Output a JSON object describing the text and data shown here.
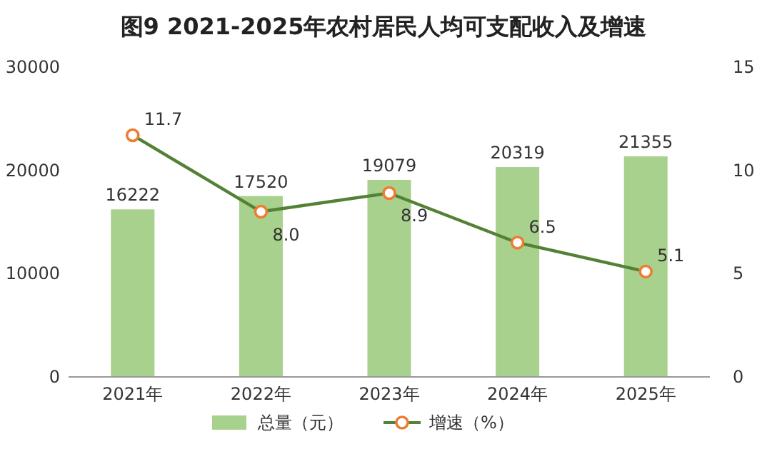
{
  "chart_data": {
    "type": "bar",
    "title": "图9 2021-2025年农村居民人均可支配收入及增速",
    "categories": [
      "2021年",
      "2022年",
      "2023年",
      "2024年",
      "2025年"
    ],
    "series": [
      {
        "name": "总量（元）",
        "color": "#a9d18e",
        "values": [
          16222,
          17520,
          19079,
          20319,
          21355
        ]
      },
      {
        "name": "增速（%）",
        "type": "line",
        "axis": "y2",
        "color": "#538135",
        "marker": "circle",
        "values": [
          11.7,
          8.0,
          8.9,
          6.5,
          5.1
        ],
        "value_labels": [
          "11.7",
          "8.0",
          "8.9",
          "6.5",
          "5.1"
        ]
      }
    ],
    "ylim": [
      0,
      30000
    ],
    "yticks": [
      0,
      10000,
      20000,
      30000
    ],
    "y2lim": [
      0,
      15
    ],
    "y2ticks": [
      0,
      5,
      10,
      15
    ],
    "data_labels": true,
    "legend": "bottom"
  }
}
